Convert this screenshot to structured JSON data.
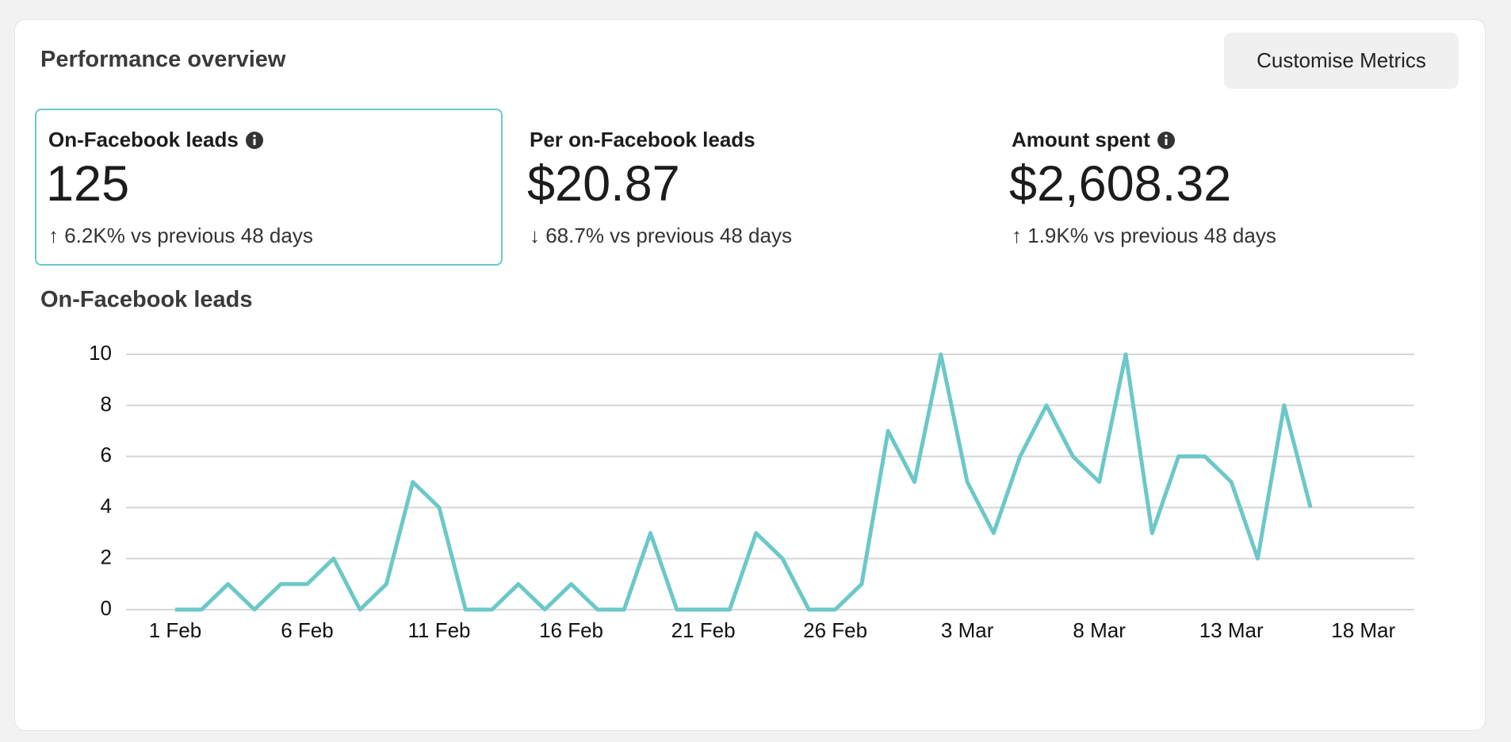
{
  "header": {
    "title": "Performance overview",
    "button": "Customise Metrics"
  },
  "metrics": [
    {
      "label": "On-Facebook leads",
      "value": "125",
      "change": "↑ 6.2K% vs previous 48 days"
    },
    {
      "label": "Per on-Facebook leads",
      "value": "$20.87",
      "change": "↓ 68.7% vs previous 48 days"
    },
    {
      "label": "Amount spent",
      "value": "$2,608.32",
      "change": "↑ 1.9K% vs previous 48 days"
    }
  ],
  "chart_data": {
    "type": "line",
    "title": "On-Facebook leads",
    "color": "#6cc8c8",
    "grid": true,
    "x": [
      0,
      1,
      2,
      3,
      4,
      5,
      6,
      7,
      8,
      9,
      10,
      11,
      12,
      13,
      14,
      15,
      16,
      17,
      18,
      19,
      20,
      21,
      22,
      23,
      24,
      25,
      26,
      27,
      28,
      29,
      30,
      31,
      32,
      33,
      34,
      35,
      36,
      37,
      38,
      39,
      40,
      41,
      42,
      43
    ],
    "values": [
      0,
      0,
      1,
      0,
      1,
      1,
      2,
      0,
      1,
      5,
      4,
      0,
      0,
      1,
      0,
      1,
      0,
      0,
      3,
      0,
      0,
      0,
      3,
      2,
      0,
      0,
      1,
      7,
      5,
      10,
      5,
      3,
      6,
      8,
      6,
      5,
      10,
      3,
      6,
      6,
      5,
      2,
      8,
      4
    ],
    "xlim": [
      -1.86,
      46.93
    ],
    "xticks": [
      {
        "value": 0,
        "label": "1 Feb"
      },
      {
        "value": 5,
        "label": "6 Feb"
      },
      {
        "value": 10,
        "label": "11 Feb"
      },
      {
        "value": 15,
        "label": "16 Feb"
      },
      {
        "value": 20,
        "label": "21 Feb"
      },
      {
        "value": 25,
        "label": "26 Feb"
      },
      {
        "value": 30,
        "label": "3 Mar"
      },
      {
        "value": 35,
        "label": "8 Mar"
      },
      {
        "value": 40,
        "label": "13 Mar"
      },
      {
        "value": 45,
        "label": "18 Mar"
      }
    ],
    "ylim": [
      0,
      10
    ],
    "yticks": [
      0,
      2,
      4,
      6,
      8,
      10
    ]
  }
}
